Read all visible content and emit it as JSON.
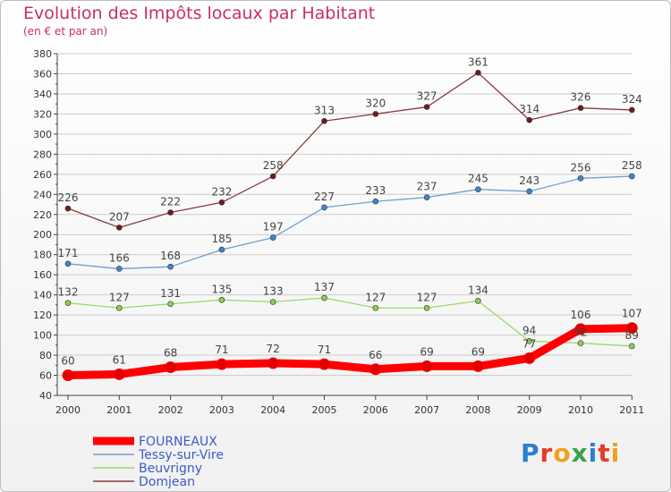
{
  "page": {
    "title": "Evolution des Impôts locaux par Habitant",
    "subtitle": "(en € et par an)",
    "logo": "Proxiti"
  },
  "colors": {
    "title": "#c8305a",
    "legend_text": "#3b5bc8",
    "grid": "#cccccc",
    "axis": "#444444"
  },
  "chart_data": {
    "type": "line",
    "title": "Evolution des Impôts locaux par Habitant",
    "subtitle": "(en € et par an)",
    "xlabel": "",
    "ylabel": "",
    "x": [
      "2000",
      "2001",
      "2002",
      "2003",
      "2004",
      "2005",
      "2006",
      "2007",
      "2008",
      "2009",
      "2010",
      "2011"
    ],
    "ylim": [
      40,
      380
    ],
    "yticks": [
      40,
      60,
      80,
      100,
      120,
      140,
      160,
      180,
      200,
      220,
      240,
      260,
      280,
      300,
      320,
      340,
      360,
      380
    ],
    "grid": "horizontal",
    "legend": "bottom-left",
    "series": [
      {
        "name": "FOURNEAUX",
        "color": "#ff0000",
        "marker": "#e00000",
        "emphasis": true,
        "values": [
          60,
          61,
          68,
          71,
          72,
          71,
          66,
          69,
          69,
          77,
          106,
          107
        ]
      },
      {
        "name": "Tessy-sur-Vire",
        "color": "#6fa0d0",
        "marker": "#3d86d4",
        "emphasis": false,
        "values": [
          171,
          166,
          168,
          185,
          197,
          227,
          233,
          237,
          245,
          243,
          256,
          258
        ]
      },
      {
        "name": "Beuvrigny",
        "color": "#9ad86a",
        "marker": "#8ad050",
        "emphasis": false,
        "values": [
          132,
          127,
          131,
          135,
          133,
          137,
          127,
          127,
          134,
          94,
          92,
          89
        ]
      },
      {
        "name": "Domjean",
        "color": "#8a3a3e",
        "marker": "#6e1b20",
        "emphasis": false,
        "values": [
          226,
          207,
          222,
          232,
          258,
          313,
          320,
          327,
          361,
          314,
          326,
          324
        ]
      }
    ]
  }
}
